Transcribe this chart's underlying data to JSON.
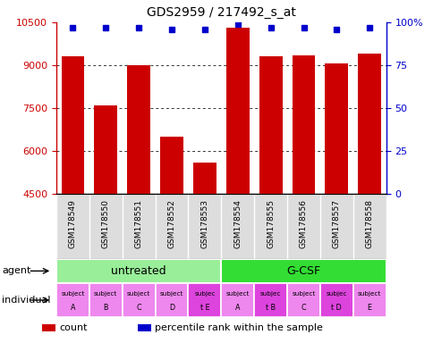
{
  "title": "GDS2959 / 217492_s_at",
  "samples": [
    "GSM178549",
    "GSM178550",
    "GSM178551",
    "GSM178552",
    "GSM178553",
    "GSM178554",
    "GSM178555",
    "GSM178556",
    "GSM178557",
    "GSM178558"
  ],
  "counts": [
    9300,
    7600,
    9000,
    6500,
    5600,
    10300,
    9300,
    9350,
    9050,
    9400
  ],
  "percentile_ranks": [
    97,
    97,
    97,
    96,
    96,
    99,
    97,
    97,
    96,
    97
  ],
  "ylim": [
    4500,
    10500
  ],
  "yticks_left": [
    4500,
    6000,
    7500,
    9000,
    10500
  ],
  "yticks_right": [
    0,
    25,
    50,
    75,
    100
  ],
  "right_ylim": [
    0,
    100
  ],
  "bar_color": "#cc0000",
  "percentile_color": "#0000cc",
  "agent_groups": [
    {
      "label": "untreated",
      "start": 0,
      "end": 5,
      "color": "#99ee99"
    },
    {
      "label": "G-CSF",
      "start": 5,
      "end": 10,
      "color": "#33dd33"
    }
  ],
  "individual_labels_line1": [
    "subject",
    "subject",
    "subject",
    "subject",
    "subjec",
    "subject",
    "subjec",
    "subject",
    "subjec",
    "subject"
  ],
  "individual_labels_line2": [
    "A",
    "B",
    "C",
    "D",
    "t E",
    "A",
    "t B",
    "C",
    "t D",
    "E"
  ],
  "individual_highlight": [
    false,
    false,
    false,
    false,
    true,
    false,
    true,
    false,
    true,
    false
  ],
  "ind_color_normal": "#ee88ee",
  "ind_color_highlight": "#dd44dd",
  "axis_color_left": "#cc0000",
  "axis_color_right": "#0000cc",
  "bar_width": 0.7,
  "sample_bg_color": "#dddddd",
  "grid_dotted_color": "#333333"
}
